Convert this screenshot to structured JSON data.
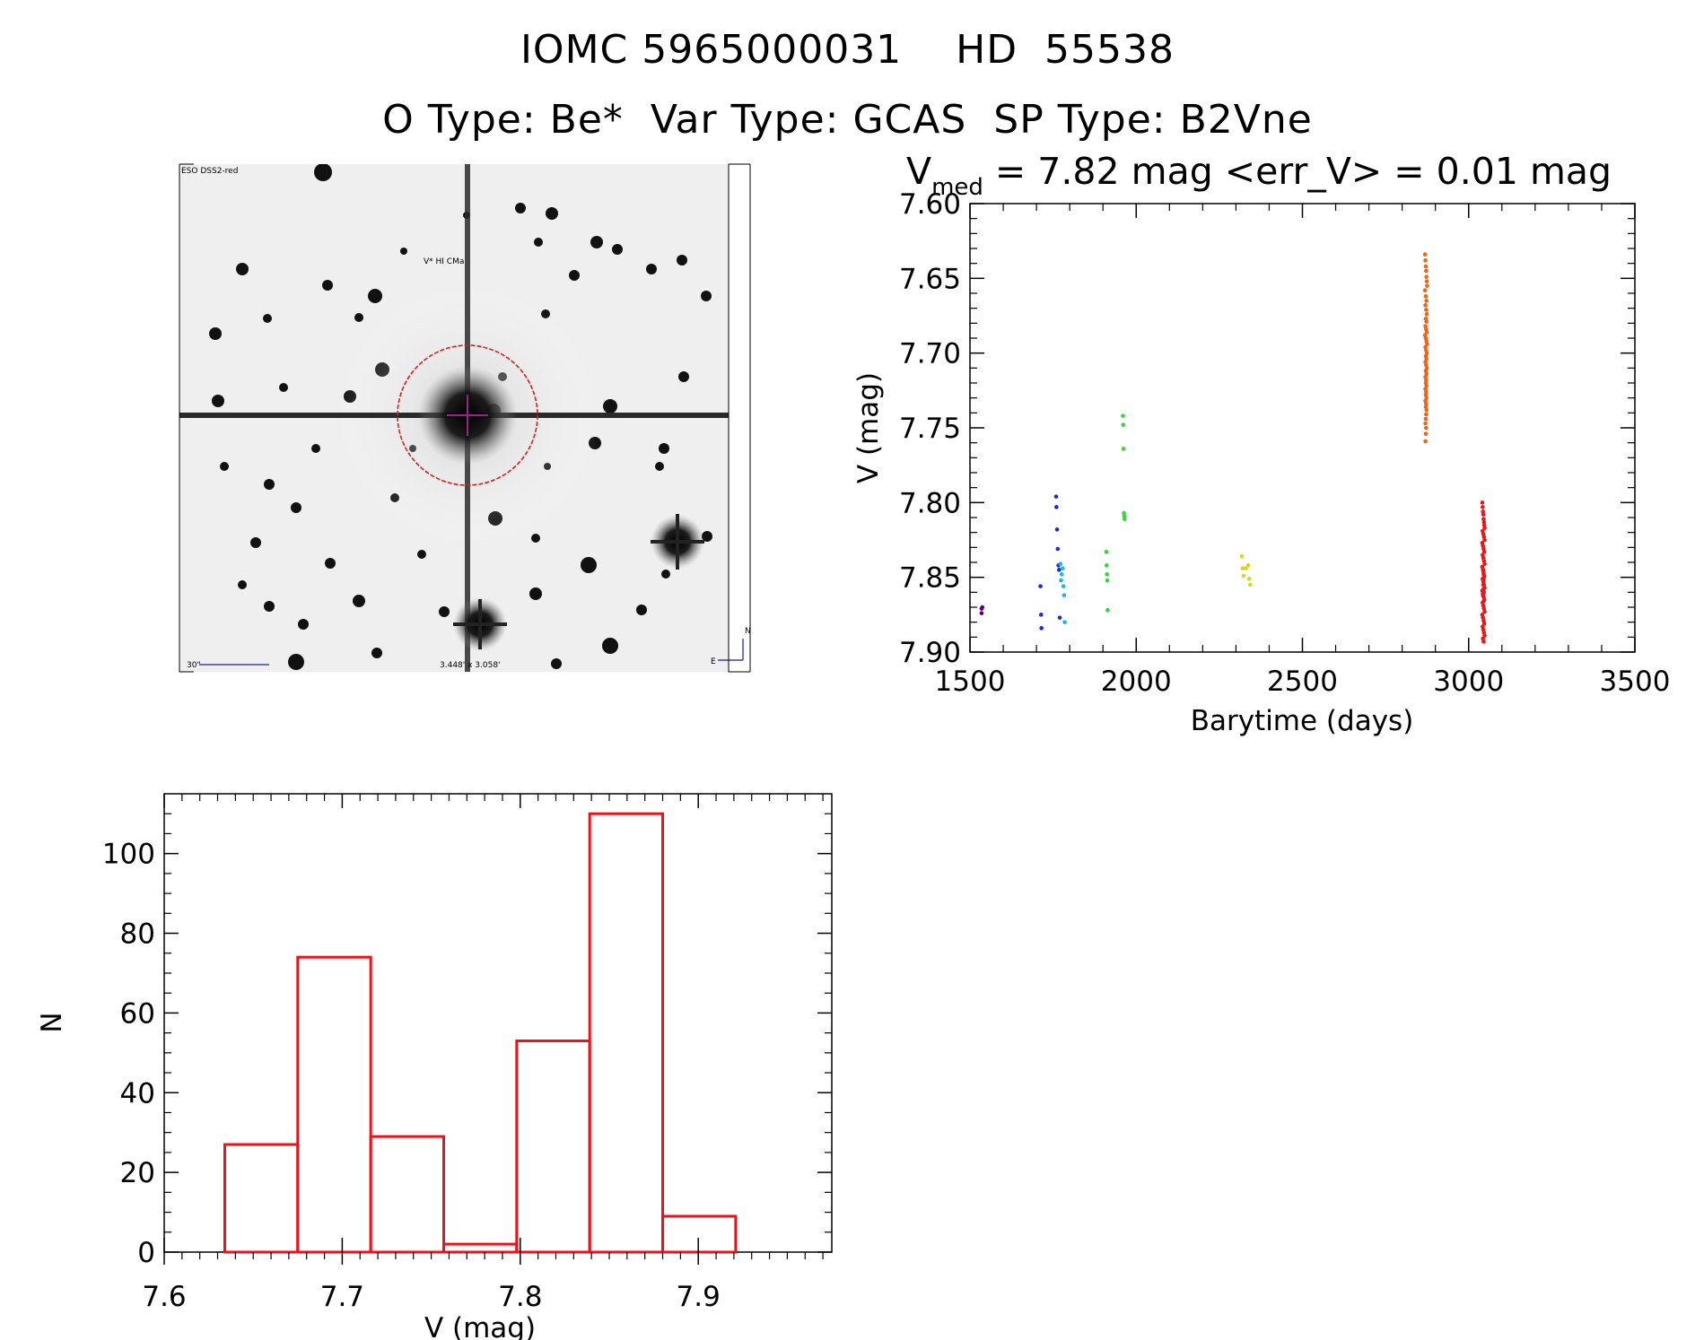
{
  "header": {
    "id_line": "IOMC 5965000031    HD  55538",
    "type_line": "O Type: Be*  Var Type: GCAS  SP Type: B2Vne"
  },
  "finder_image": {
    "survey_label": "ESO DSS2-red",
    "target_label": "V* HI CMa",
    "scale_label": "30\"",
    "fov_label": "3.448' x 3.058'",
    "north_label": "N",
    "east_label": "E"
  },
  "colors": {
    "histogram": "#e8141c",
    "finder_circle": "#cc2222",
    "crosshair": "#a0208c",
    "finder_text_blue": "#1a1aa0"
  },
  "chart_data": [
    {
      "type": "scatter",
      "title_prefix": "V",
      "title_sub": "med",
      "title_rest": " = 7.82 mag <err_V> = 0.01 mag",
      "xlabel": "Barytime (days)",
      "ylabel": "V (mag)",
      "xlim": [
        1500,
        3500
      ],
      "ylim": [
        7.6,
        7.9
      ],
      "y_inverted": true,
      "xticks": [
        1500,
        2000,
        2500,
        3000,
        3500
      ],
      "xtick_labels": [
        "1500",
        "2000",
        "2500",
        "3000",
        "3500"
      ],
      "yticks": [
        7.6,
        7.65,
        7.7,
        7.75,
        7.8,
        7.85,
        7.9
      ],
      "ytick_labels": [
        "7.60",
        "7.65",
        "7.70",
        "7.75",
        "7.80",
        "7.85",
        "7.90"
      ],
      "series": [
        {
          "name": "group-1",
          "color": "#5a0078",
          "x": [
            1535,
            1535,
            1537
          ],
          "y": [
            7.871,
            7.874,
            7.87
          ]
        },
        {
          "name": "group-2",
          "color": "#1a2ad8",
          "x": [
            1712,
            1714,
            1715,
            1759,
            1760,
            1762,
            1764,
            1766,
            1768,
            1770
          ],
          "y": [
            7.856,
            7.875,
            7.884,
            7.796,
            7.803,
            7.818,
            7.831,
            7.842,
            7.845,
            7.877
          ]
        },
        {
          "name": "group-3",
          "color": "#18b8e8",
          "x": [
            1772,
            1774,
            1776,
            1779,
            1781,
            1783,
            1785
          ],
          "y": [
            7.841,
            7.852,
            7.848,
            7.844,
            7.856,
            7.862,
            7.88
          ]
        },
        {
          "name": "group-4",
          "color": "#30d838",
          "x": [
            1910,
            1911,
            1912,
            1913,
            1914,
            1960,
            1961,
            1962,
            1963,
            1964,
            1965
          ],
          "y": [
            7.833,
            7.842,
            7.848,
            7.852,
            7.872,
            7.742,
            7.748,
            7.764,
            7.807,
            7.809,
            7.811
          ]
        },
        {
          "name": "group-5",
          "color": "#d8d818",
          "x": [
            2318,
            2320,
            2323,
            2330,
            2337,
            2340,
            2343
          ],
          "y": [
            7.836,
            7.844,
            7.849,
            7.844,
            7.842,
            7.851,
            7.855
          ]
        },
        {
          "name": "group-6",
          "color": "#f06418",
          "x": [
            2869,
            2870,
            2871,
            2872,
            2873,
            2874,
            2875,
            2869,
            2871,
            2873,
            2870,
            2872,
            2874,
            2871,
            2873,
            2870,
            2872,
            2874,
            2869,
            2871,
            2873,
            2875,
            2870,
            2872,
            2874,
            2871,
            2873,
            2870,
            2872,
            2874,
            2871,
            2873,
            2870,
            2872,
            2871,
            2873,
            2870,
            2872,
            2871,
            2873,
            2870,
            2872,
            2871,
            2873,
            2872,
            2871,
            2870,
            2872,
            2871,
            2870
          ],
          "y": [
            7.634,
            7.638,
            7.642,
            7.645,
            7.649,
            7.652,
            7.655,
            7.658,
            7.662,
            7.665,
            7.668,
            7.671,
            7.674,
            7.677,
            7.679,
            7.682,
            7.684,
            7.686,
            7.688,
            7.69,
            7.692,
            7.694,
            7.696,
            7.698,
            7.7,
            7.702,
            7.704,
            7.706,
            7.708,
            7.71,
            7.712,
            7.714,
            7.716,
            7.718,
            7.72,
            7.722,
            7.724,
            7.726,
            7.728,
            7.73,
            7.732,
            7.734,
            7.736,
            7.738,
            7.741,
            7.744,
            7.747,
            7.75,
            7.754,
            7.759
          ]
        },
        {
          "name": "group-7",
          "color": "#e81818",
          "x": [
            3041,
            3042,
            3043,
            3044,
            3045,
            3046,
            3047,
            3048,
            3042,
            3044,
            3046,
            3048,
            3041,
            3043,
            3045,
            3047,
            3042,
            3044,
            3046,
            3048,
            3041,
            3043,
            3045,
            3047,
            3042,
            3044,
            3046,
            3048,
            3041,
            3043,
            3045,
            3047,
            3042,
            3044,
            3046,
            3048,
            3041,
            3043,
            3045,
            3047,
            3042,
            3044,
            3046,
            3048,
            3043,
            3045,
            3044,
            3046,
            3045,
            3044,
            3043,
            3045,
            3044,
            3046,
            3045
          ],
          "y": [
            7.8,
            7.803,
            7.806,
            7.808,
            7.811,
            7.813,
            7.815,
            7.817,
            7.819,
            7.821,
            7.823,
            7.825,
            7.827,
            7.829,
            7.831,
            7.833,
            7.835,
            7.837,
            7.839,
            7.841,
            7.843,
            7.845,
            7.847,
            7.849,
            7.851,
            7.853,
            7.855,
            7.857,
            7.859,
            7.861,
            7.863,
            7.865,
            7.867,
            7.869,
            7.871,
            7.873,
            7.875,
            7.877,
            7.879,
            7.881,
            7.883,
            7.885,
            7.887,
            7.889,
            7.891,
            7.893,
            7.845,
            7.85,
            7.852,
            7.858,
            7.862,
            7.848,
            7.855,
            7.86,
            7.866
          ]
        }
      ]
    },
    {
      "type": "bar",
      "subtype": "histogram",
      "xlabel": "V (mag)",
      "ylabel": "N",
      "xlim": [
        7.6,
        7.975
      ],
      "ylim": [
        0,
        115
      ],
      "xticks": [
        7.6,
        7.7,
        7.8,
        7.9
      ],
      "xtick_labels": [
        "7.6",
        "7.7",
        "7.8",
        "7.9"
      ],
      "yticks": [
        0,
        20,
        40,
        60,
        80,
        100
      ],
      "ytick_labels": [
        "0",
        "20",
        "40",
        "60",
        "80",
        "100"
      ],
      "bin_edges": [
        7.634,
        7.675,
        7.716,
        7.757,
        7.798,
        7.839,
        7.88,
        7.921
      ],
      "values": [
        27,
        74,
        29,
        2,
        53,
        110,
        9
      ]
    }
  ]
}
